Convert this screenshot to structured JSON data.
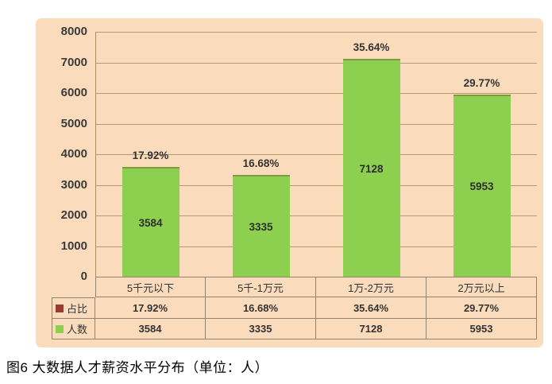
{
  "caption": "图6 大数据人才薪资水平分布（单位：人）",
  "chart_data": {
    "type": "bar",
    "title": "",
    "xlabel": "",
    "ylabel": "",
    "categories": [
      "5千元以下",
      "5千-1万元",
      "1万-2万元",
      "2万元以上"
    ],
    "series": [
      {
        "name": "占比",
        "kind": "percent-labels",
        "values": [
          "17.92%",
          "16.68%",
          "35.64%",
          "29.77%"
        ],
        "color": "#9c3a31"
      },
      {
        "name": "人数",
        "kind": "bars",
        "values": [
          3584,
          3335,
          7128,
          5953
        ],
        "color": "#8dcf4e"
      }
    ],
    "ylim": [
      0,
      8000
    ],
    "yticks": [
      0,
      1000,
      2000,
      3000,
      4000,
      5000,
      6000,
      7000,
      8000
    ],
    "grid": "horizontal",
    "legend_position": "table-left-column",
    "colors": {
      "panel_background": "#fadcbc",
      "gridline": "#ab8c63",
      "bar_fill": "#8dcf4e",
      "bar_top_edge": "#7f9c3e",
      "table_border": "#94846f",
      "ratio_swatch": "#9c3a31",
      "count_swatch": "#8dcf4e",
      "text": "#333333"
    }
  }
}
